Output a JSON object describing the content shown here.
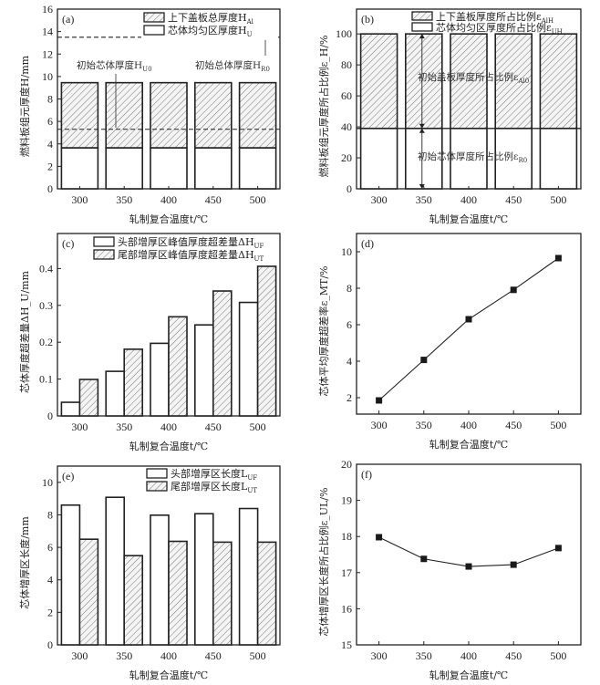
{
  "chart_data": [
    {
      "id": "a",
      "type": "bar",
      "stacked": true,
      "panel_label": "(a)",
      "categories": [
        "300",
        "350",
        "400",
        "450",
        "500"
      ],
      "xlabel": "轧制复合温度t/℃",
      "ylabel": "燃料板组元厚度H/mm",
      "ylim": [
        0,
        16
      ],
      "yticks": [
        0,
        2,
        4,
        6,
        8,
        10,
        12,
        14,
        16
      ],
      "series": [
        {
          "name": "芯体均匀区厚度H_U",
          "pattern": "plain",
          "values": [
            3.65,
            3.65,
            3.65,
            3.65,
            3.65
          ]
        },
        {
          "name": "上下盖板总厚度H_Al",
          "pattern": "hatched",
          "values": [
            5.8,
            5.8,
            5.8,
            5.8,
            5.8
          ]
        }
      ],
      "legend": [
        {
          "label": "上下盖板总厚度H",
          "sub": "Al",
          "pattern": "hatched"
        },
        {
          "label": "芯体均匀区厚度H",
          "sub": "U",
          "pattern": "plain"
        }
      ],
      "reference_lines": [
        {
          "label": "初始总体厚度H",
          "sub": "R0",
          "value": 13.5
        },
        {
          "label": "初始芯体厚度H",
          "sub": "U0",
          "value": 5.3
        }
      ],
      "legend_position": "top-right"
    },
    {
      "id": "b",
      "type": "bar",
      "stacked": true,
      "panel_label": "(b)",
      "categories": [
        "300",
        "350",
        "400",
        "450",
        "500"
      ],
      "xlabel": "轧制复合温度t/℃",
      "ylabel": "燃料板组元厚度所占比例ε_H/%",
      "ylim": [
        0,
        116
      ],
      "yticks": [
        0,
        20,
        40,
        60,
        80,
        100
      ],
      "series": [
        {
          "name": "芯体均匀区厚度所占比例ε_UH",
          "pattern": "plain",
          "values": [
            39,
            39,
            39,
            39,
            39
          ]
        },
        {
          "name": "上下盖板厚度所占比例ε_AlH",
          "pattern": "hatched",
          "values": [
            61,
            61,
            61,
            61,
            61
          ]
        }
      ],
      "legend": [
        {
          "label": "上下盖板厚度所占比例ε",
          "sub": "AlH",
          "pattern": "hatched"
        },
        {
          "label": "芯体均匀区厚度所占比例ε",
          "sub": "UH",
          "pattern": "plain"
        }
      ],
      "reference_lines": [
        {
          "label": "初始芯体厚度所占比例ε",
          "sub": "R0",
          "value": 39
        }
      ],
      "annotations": [
        {
          "label": "初始盖板厚度所占比例ε",
          "sub": "Al0",
          "from": 39,
          "to": 100
        },
        {
          "label": "初始芯体厚度所占比例ε",
          "sub": "R0",
          "from": 0,
          "to": 39
        }
      ],
      "legend_position": "top-right"
    },
    {
      "id": "c",
      "type": "bar",
      "panel_label": "(c)",
      "categories": [
        "300",
        "350",
        "400",
        "450",
        "500"
      ],
      "xlabel": "轧制复合温度t/℃",
      "ylabel": "芯体厚度超差量ΔH_U/mm",
      "ylim": [
        0,
        0.495
      ],
      "yticks": [
        0,
        0.1,
        0.2,
        0.3,
        0.4
      ],
      "ytick_labels": [
        "0",
        "0.1",
        "0.2",
        "0.3",
        "0.4"
      ],
      "series": [
        {
          "name": "头部增厚区峰值厚度超差量ΔH_UF",
          "pattern": "plain",
          "values": [
            0.037,
            0.121,
            0.197,
            0.247,
            0.308
          ]
        },
        {
          "name": "尾部增厚区峰值厚度超差量ΔH_UT",
          "pattern": "hatched",
          "values": [
            0.099,
            0.181,
            0.269,
            0.339,
            0.406
          ]
        }
      ],
      "legend": [
        {
          "label": "头部增厚区峰值厚度超差量ΔH",
          "sub": "UF",
          "pattern": "plain"
        },
        {
          "label": "尾部增厚区峰值厚度超差量ΔH",
          "sub": "UT",
          "pattern": "hatched"
        }
      ],
      "legend_position": "top-right"
    },
    {
      "id": "d",
      "type": "line",
      "panel_label": "(d)",
      "x": [
        300,
        350,
        400,
        450,
        500
      ],
      "xlim": [
        275,
        525
      ],
      "xticks": [
        300,
        350,
        400,
        450,
        500
      ],
      "xlabel": "轧制复合温度t/℃",
      "ylabel": "芯体平均厚度超差率ε_MT/%",
      "ylim": [
        1.1,
        11
      ],
      "yticks": [
        2,
        4,
        6,
        8,
        10
      ],
      "series": [
        {
          "name": "ε_MT",
          "marker": "square",
          "values": [
            1.85,
            4.07,
            6.3,
            7.91,
            9.65
          ]
        }
      ]
    },
    {
      "id": "e",
      "type": "bar",
      "panel_label": "(e)",
      "categories": [
        "300",
        "350",
        "400",
        "450",
        "500"
      ],
      "xlabel": "轧制复合温度t/℃",
      "ylabel": "芯体增厚区长度/mm",
      "ylim": [
        0,
        11
      ],
      "yticks": [
        0,
        2,
        4,
        6,
        8,
        10
      ],
      "series": [
        {
          "name": "头部增厚区长度L_UF",
          "pattern": "plain",
          "values": [
            8.6,
            9.08,
            7.98,
            8.07,
            8.39
          ]
        },
        {
          "name": "尾部增厚区长度L_UT",
          "pattern": "hatched",
          "values": [
            6.5,
            5.49,
            6.37,
            6.32,
            6.32
          ]
        }
      ],
      "legend": [
        {
          "label": "头部增厚区长度L",
          "sub": "UF",
          "pattern": "plain"
        },
        {
          "label": "尾部增厚区长度L",
          "sub": "UT",
          "pattern": "hatched"
        }
      ],
      "legend_position": "top-right"
    },
    {
      "id": "f",
      "type": "line",
      "panel_label": "(f)",
      "x": [
        300,
        350,
        400,
        450,
        500
      ],
      "xlim": [
        275,
        525
      ],
      "xticks": [
        300,
        350,
        400,
        450,
        500
      ],
      "xlabel": "轧制复合温度t/℃",
      "ylabel": "芯体增厚区长度所占比例ε_UL/%",
      "ylim": [
        15,
        20
      ],
      "yticks": [
        15,
        16,
        17,
        18,
        19,
        20
      ],
      "series": [
        {
          "name": "ε_UL",
          "marker": "square",
          "values": [
            17.98,
            17.38,
            17.17,
            17.22,
            17.68
          ]
        }
      ]
    }
  ]
}
